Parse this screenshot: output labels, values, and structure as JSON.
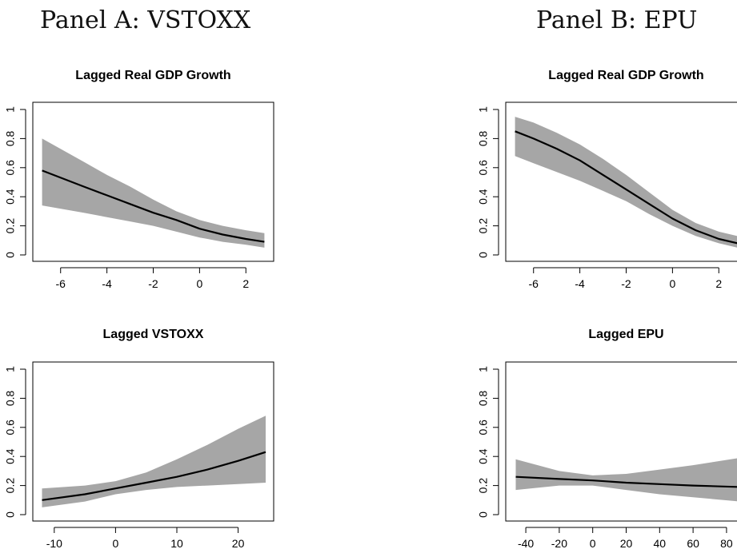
{
  "panels": [
    {
      "title": "Panel A: VSTOXX"
    },
    {
      "title": "Panel B: EPU"
    }
  ],
  "chart_data": [
    {
      "type": "line",
      "title": "Lagged Real GDP Growth",
      "panel": "Panel A: VSTOXX",
      "xlabel": "",
      "ylabel": "",
      "xlim": [
        -7.2,
        3.2
      ],
      "ylim": [
        0,
        1
      ],
      "xticks": [
        -6,
        -4,
        -2,
        0,
        2
      ],
      "yticks": [
        0,
        0.2,
        0.4,
        0.6,
        0.8,
        1
      ],
      "xtick_labels": [
        "-6",
        "-4",
        "-2",
        "0",
        "2"
      ],
      "ytick_labels": [
        "0",
        "0.2",
        "0.4",
        "0.6",
        "0.8",
        "1"
      ],
      "grid": false,
      "series": [
        {
          "role": "estimate",
          "color": "#000000",
          "x": [
            -6.8,
            -5,
            -4,
            -3,
            -2,
            -1,
            0,
            1,
            2,
            2.8
          ],
          "y": [
            0.58,
            0.47,
            0.41,
            0.35,
            0.29,
            0.24,
            0.18,
            0.14,
            0.11,
            0.09
          ]
        },
        {
          "role": "band_upper",
          "color": "#a6a6a6",
          "x": [
            -6.8,
            -5,
            -4,
            -3,
            -2,
            -1,
            0,
            1,
            2,
            2.8
          ],
          "y": [
            0.8,
            0.64,
            0.55,
            0.47,
            0.38,
            0.3,
            0.24,
            0.2,
            0.17,
            0.15
          ]
        },
        {
          "role": "band_lower",
          "color": "#a6a6a6",
          "x": [
            -6.8,
            -5,
            -4,
            -3,
            -2,
            -1,
            0,
            1,
            2,
            2.8
          ],
          "y": [
            0.34,
            0.29,
            0.26,
            0.23,
            0.2,
            0.16,
            0.12,
            0.09,
            0.07,
            0.05
          ]
        }
      ]
    },
    {
      "type": "line",
      "title": "Lagged Real GDP Growth",
      "panel": "Panel B: EPU",
      "xlabel": "",
      "ylabel": "",
      "xlim": [
        -7.2,
        3.2
      ],
      "ylim": [
        0,
        1
      ],
      "xticks": [
        -6,
        -4,
        -2,
        0,
        2
      ],
      "yticks": [
        0,
        0.2,
        0.4,
        0.6,
        0.8,
        1
      ],
      "xtick_labels": [
        "-6",
        "-4",
        "-2",
        "0",
        "2"
      ],
      "ytick_labels": [
        "0",
        "0.2",
        "0.4",
        "0.6",
        "0.8",
        "1"
      ],
      "grid": false,
      "series": [
        {
          "role": "estimate",
          "color": "#000000",
          "x": [
            -6.8,
            -6,
            -5,
            -4,
            -3,
            -2,
            -1,
            0,
            1,
            2,
            2.8
          ],
          "y": [
            0.85,
            0.8,
            0.73,
            0.65,
            0.55,
            0.45,
            0.35,
            0.25,
            0.17,
            0.11,
            0.08
          ]
        },
        {
          "role": "band_upper",
          "color": "#a6a6a6",
          "x": [
            -6.8,
            -6,
            -5,
            -4,
            -3,
            -2,
            -1,
            0,
            1,
            2,
            2.8
          ],
          "y": [
            0.95,
            0.91,
            0.84,
            0.76,
            0.66,
            0.55,
            0.43,
            0.31,
            0.22,
            0.16,
            0.13
          ]
        },
        {
          "role": "band_lower",
          "color": "#a6a6a6",
          "x": [
            -6.8,
            -6,
            -5,
            -4,
            -3,
            -2,
            -1,
            0,
            1,
            2,
            2.8
          ],
          "y": [
            0.68,
            0.63,
            0.57,
            0.51,
            0.44,
            0.37,
            0.28,
            0.2,
            0.13,
            0.08,
            0.05
          ]
        }
      ]
    },
    {
      "type": "line",
      "title": "Lagged VSTOXX",
      "panel": "Panel A: VSTOXX",
      "xlabel": "",
      "ylabel": "",
      "xlim": [
        -13.5,
        25.8
      ],
      "ylim": [
        0,
        1
      ],
      "xticks": [
        -10,
        0,
        10,
        20
      ],
      "yticks": [
        0,
        0.2,
        0.4,
        0.6,
        0.8,
        1
      ],
      "xtick_labels": [
        "-10",
        "0",
        "10",
        "20"
      ],
      "ytick_labels": [
        "0",
        "0.2",
        "0.4",
        "0.6",
        "0.8",
        "1"
      ],
      "grid": false,
      "series": [
        {
          "role": "estimate",
          "color": "#000000",
          "x": [
            -12,
            -5,
            0,
            5,
            10,
            15,
            20,
            24.5
          ],
          "y": [
            0.1,
            0.14,
            0.18,
            0.22,
            0.26,
            0.31,
            0.37,
            0.43
          ]
        },
        {
          "role": "band_upper",
          "color": "#a6a6a6",
          "x": [
            -12,
            -5,
            0,
            5,
            10,
            15,
            20,
            24.5
          ],
          "y": [
            0.18,
            0.2,
            0.23,
            0.29,
            0.38,
            0.48,
            0.59,
            0.68
          ]
        },
        {
          "role": "band_lower",
          "color": "#a6a6a6",
          "x": [
            -12,
            -5,
            0,
            5,
            10,
            15,
            20,
            24.5
          ],
          "y": [
            0.05,
            0.09,
            0.14,
            0.17,
            0.19,
            0.2,
            0.21,
            0.22
          ]
        }
      ]
    },
    {
      "type": "line",
      "title": "Lagged EPU",
      "panel": "Panel B: EPU",
      "xlabel": "",
      "ylabel": "",
      "xlim": [
        -52,
        92
      ],
      "ylim": [
        0,
        1
      ],
      "xticks": [
        -40,
        -20,
        0,
        20,
        40,
        60,
        80
      ],
      "yticks": [
        0,
        0.2,
        0.4,
        0.6,
        0.8,
        1
      ],
      "xtick_labels": [
        "-40",
        "-20",
        "0",
        "20",
        "40",
        "60",
        "80"
      ],
      "ytick_labels": [
        "0",
        "0.2",
        "0.4",
        "0.6",
        "0.8",
        "1"
      ],
      "grid": false,
      "series": [
        {
          "role": "estimate",
          "color": "#000000",
          "x": [
            -46,
            -20,
            0,
            20,
            40,
            60,
            88
          ],
          "y": [
            0.26,
            0.245,
            0.235,
            0.22,
            0.21,
            0.2,
            0.19
          ]
        },
        {
          "role": "band_upper",
          "color": "#a6a6a6",
          "x": [
            -46,
            -20,
            0,
            20,
            40,
            60,
            88
          ],
          "y": [
            0.38,
            0.3,
            0.27,
            0.28,
            0.31,
            0.34,
            0.39
          ]
        },
        {
          "role": "band_lower",
          "color": "#a6a6a6",
          "x": [
            -46,
            -20,
            0,
            20,
            40,
            60,
            88
          ],
          "y": [
            0.17,
            0.2,
            0.2,
            0.17,
            0.14,
            0.12,
            0.09
          ]
        }
      ]
    }
  ]
}
